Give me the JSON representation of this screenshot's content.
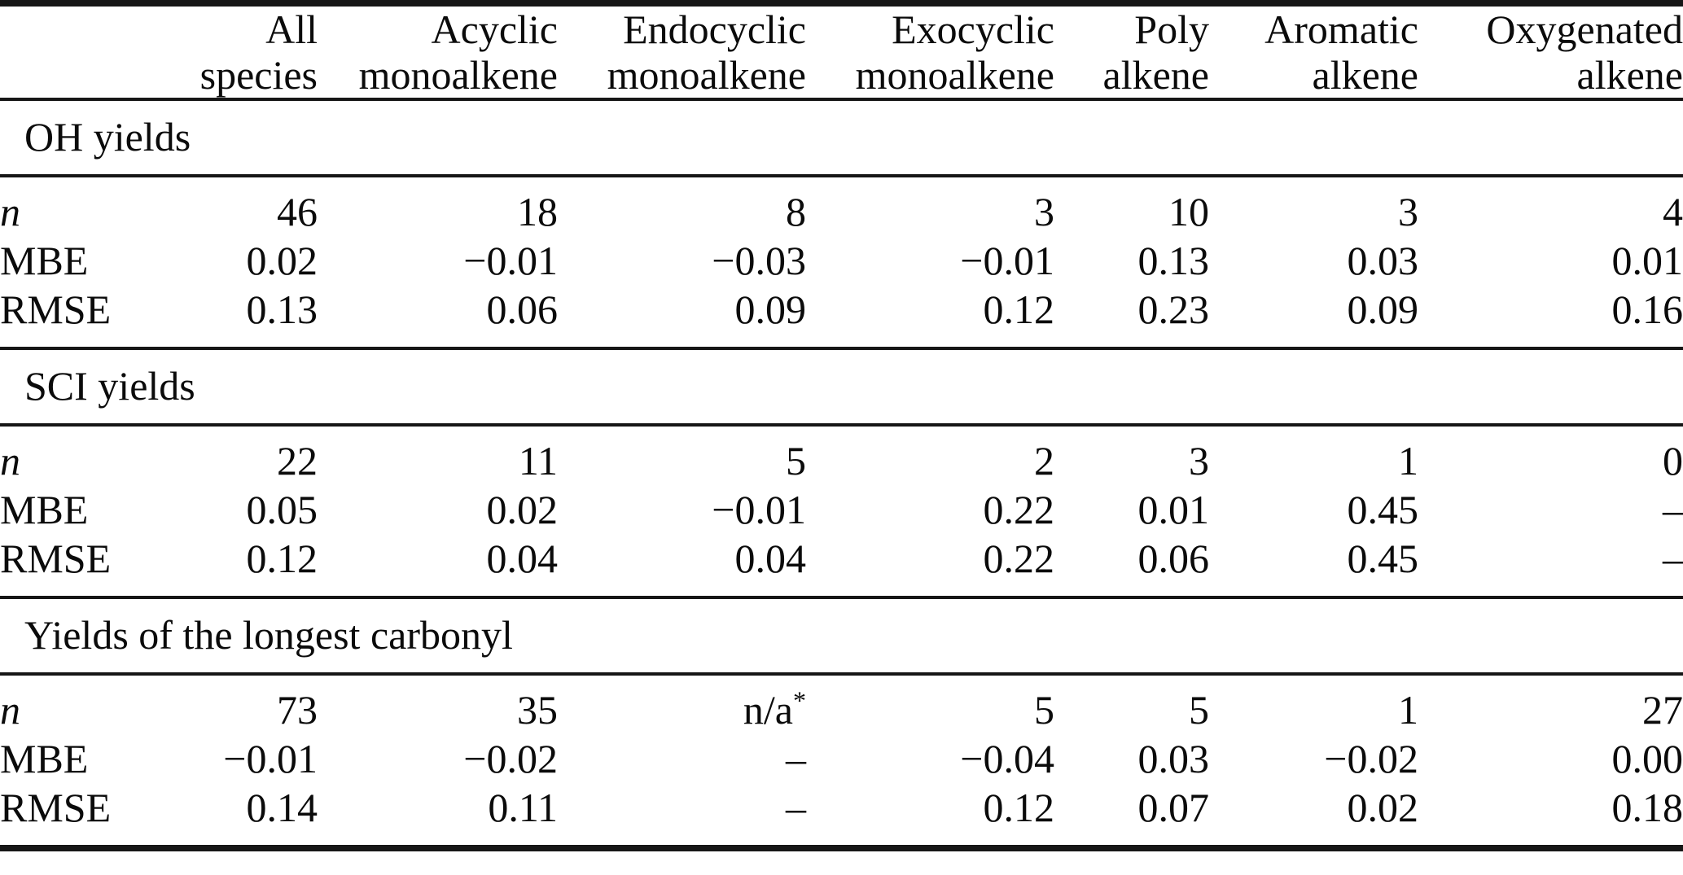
{
  "page": {
    "background": "#ffffff",
    "text_color": "#0b0b0b",
    "rule_color": "#161616"
  },
  "table": {
    "header_columns": [
      {
        "line1": "",
        "line2": ""
      },
      {
        "line1": "All",
        "line2": "species"
      },
      {
        "line1": "Acyclic",
        "line2": "monoalkene"
      },
      {
        "line1": "Endocyclic",
        "line2": "monoalkene"
      },
      {
        "line1": "Exocyclic",
        "line2": "monoalkene"
      },
      {
        "line1": "Poly",
        "line2": "alkene"
      },
      {
        "line1": "Aromatic",
        "line2": "alkene"
      },
      {
        "line1": "Oxygenated",
        "line2": "alkene"
      }
    ],
    "sections": [
      {
        "title": "OH yields",
        "rows": [
          {
            "label": "n",
            "italic": true,
            "values": [
              "46",
              "18",
              "8",
              "3",
              "10",
              "3",
              "4"
            ]
          },
          {
            "label": "MBE",
            "italic": false,
            "values": [
              "0.02",
              "−0.01",
              "−0.03",
              "−0.01",
              "0.13",
              "0.03",
              "0.01"
            ]
          },
          {
            "label": "RMSE",
            "italic": false,
            "values": [
              "0.13",
              "0.06",
              "0.09",
              "0.12",
              "0.23",
              "0.09",
              "0.16"
            ]
          }
        ]
      },
      {
        "title": "SCI yields",
        "rows": [
          {
            "label": "n",
            "italic": true,
            "values": [
              "22",
              "11",
              "5",
              "2",
              "3",
              "1",
              "0"
            ]
          },
          {
            "label": "MBE",
            "italic": false,
            "values": [
              "0.05",
              "0.02",
              "−0.01",
              "0.22",
              "0.01",
              "0.45",
              "–"
            ]
          },
          {
            "label": "RMSE",
            "italic": false,
            "values": [
              "0.12",
              "0.04",
              "0.04",
              "0.22",
              "0.06",
              "0.45",
              "–"
            ]
          }
        ]
      },
      {
        "title": "Yields of the longest carbonyl",
        "rows": [
          {
            "label": "n",
            "italic": true,
            "values": [
              "73",
              "35",
              "n/a*",
              "5",
              "5",
              "1",
              "27"
            ]
          },
          {
            "label": "MBE",
            "italic": false,
            "values": [
              "−0.01",
              "−0.02",
              "–",
              "−0.04",
              "0.03",
              "−0.02",
              "0.00"
            ]
          },
          {
            "label": "RMSE",
            "italic": false,
            "values": [
              "0.14",
              "0.11",
              "–",
              "0.12",
              "0.07",
              "0.02",
              "0.18"
            ]
          }
        ]
      }
    ]
  }
}
